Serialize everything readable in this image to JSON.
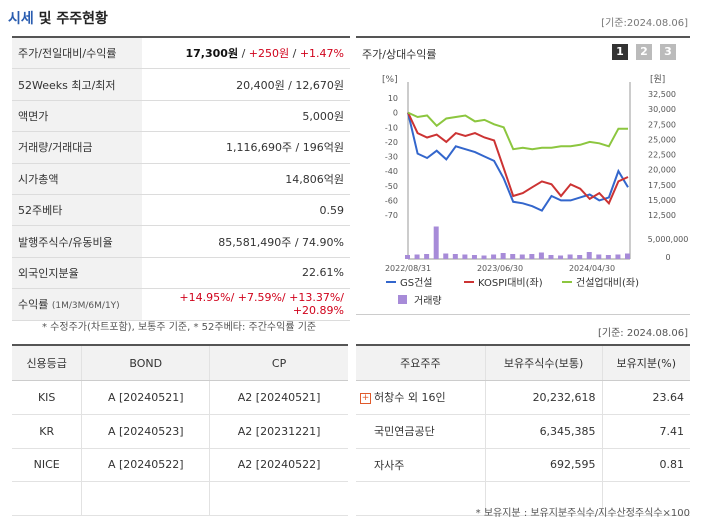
{
  "header": {
    "title_accent": "시세",
    "title_rest": " 및 주주현황",
    "date": "[기준:2024.08.06]"
  },
  "stock": {
    "rows": [
      {
        "label": "주가/전일대비/수익률",
        "price": "17,300원",
        "sep1": " / ",
        "change": "+250원",
        "sep2": " / ",
        "rate": "+1.47%"
      },
      {
        "label": "52Weeks 최고/최저",
        "value": "20,400원 / 12,670원"
      },
      {
        "label": "액면가",
        "value": "5,000원"
      },
      {
        "label": "거래량/거래대금",
        "value": "1,116,690주 / 196억원"
      },
      {
        "label": "시가총액",
        "value": "14,806억원"
      },
      {
        "label": "52주베타",
        "value": "0.59"
      },
      {
        "label": "발행주식수/유동비율",
        "value": "85,581,490주 / 74.90%"
      },
      {
        "label": "외국인지분율",
        "value": "22.61%"
      },
      {
        "label": "수익률",
        "label_sub": "(1M/3M/6M/1Y)",
        "value": "+14.95%/ +7.59%/ +13.37%/ +20.89%"
      }
    ],
    "footnote": "* 수정주가(차트포함), 보통주 기준, * 52주베타: 주간수익률 기준"
  },
  "chart_panel": {
    "title": "주가/상대수익률",
    "pages": [
      "1",
      "2",
      "3"
    ]
  },
  "chart_data": {
    "type": "line",
    "left_unit": "[%]",
    "right_unit": "[원]",
    "left_ticks": [
      "10",
      "0",
      "-10",
      "-20",
      "-30",
      "-40",
      "-50",
      "-60",
      "-70"
    ],
    "right_ticks": [
      "32,500",
      "30,000",
      "27,500",
      "25,000",
      "22,500",
      "20,000",
      "17,500",
      "15,000",
      "12,500"
    ],
    "volume_ticks": [
      "5,000,000",
      "0"
    ],
    "x_labels": [
      "2022/08/31",
      "2023/06/30",
      "2024/04/30"
    ],
    "ylim_left": [
      -70,
      10
    ],
    "series": [
      {
        "name": "GS건설",
        "color": "#3366cc",
        "values": [
          0,
          -28,
          -31,
          -26,
          -32,
          -23,
          -25,
          -27,
          -30,
          -33,
          -45,
          -61,
          -62,
          -64,
          -67,
          -57,
          -60,
          -60,
          -58,
          -56,
          -60,
          -58,
          -40,
          -51
        ]
      },
      {
        "name": "KOSPI대비(좌)",
        "color": "#cc3333",
        "values": [
          0,
          -14,
          -17,
          -15,
          -20,
          -14,
          -16,
          -14,
          -17,
          -19,
          -38,
          -57,
          -55,
          -51,
          -47,
          -49,
          -57,
          -49,
          -52,
          -59,
          -55,
          -62,
          -47,
          -44
        ]
      },
      {
        "name": "건설업대비(좌)",
        "color": "#8cc63f",
        "values": [
          0,
          -3,
          -2,
          -9,
          -4,
          -3,
          -2,
          -6,
          -5,
          -8,
          -10,
          -25,
          -24,
          -25,
          -24,
          -24,
          -23,
          -23,
          -22,
          -20,
          -21,
          -23,
          -11,
          -11
        ]
      }
    ],
    "volume": {
      "name": "거래량",
      "color": "#a78bd8",
      "values": [
        0.8,
        0.9,
        1.0,
        6.5,
        1.1,
        1.0,
        0.9,
        0.8,
        0.7,
        0.9,
        1.2,
        1.0,
        0.9,
        1.0,
        1.3,
        0.8,
        0.7,
        0.9,
        0.8,
        1.4,
        0.9,
        0.8,
        0.9,
        1.1
      ]
    }
  },
  "chart_date": "[기준: 2024.08.06]",
  "grades": {
    "headers": [
      "신용등급",
      "BOND",
      "CP"
    ],
    "rows": [
      [
        "KIS",
        "A [20240521]",
        "A2 [20240521]"
      ],
      [
        "KR",
        "A [20240523]",
        "A2 [20231221]"
      ],
      [
        "NICE",
        "A [20240522]",
        "A2 [20240522]"
      ],
      [
        "",
        "",
        ""
      ]
    ]
  },
  "holders": {
    "headers": [
      "주요주주",
      "보유주식수(보통)",
      "보유지분(%)"
    ],
    "rows": [
      [
        "허창수 외 16인",
        "20,232,618",
        "23.64"
      ],
      [
        "국민연금공단",
        "6,345,385",
        "7.41"
      ],
      [
        "자사주",
        "692,595",
        "0.81"
      ],
      [
        "",
        "",
        ""
      ]
    ],
    "footnote": "* 보유지분 : 보유지분주식수/지수산정주식수×100"
  }
}
